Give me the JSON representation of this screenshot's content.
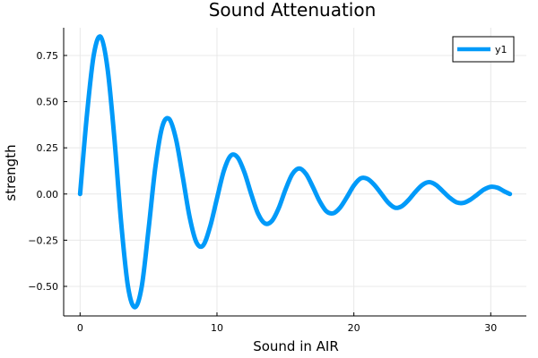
{
  "chart_data": {
    "type": "line",
    "title": "Sound Attenuation",
    "xlabel": "Sound in AIR",
    "ylabel": "strength",
    "xlim": [
      -1.2,
      32.6
    ],
    "ylim": [
      -0.66,
      0.9
    ],
    "xticks": [
      0,
      10,
      20,
      30
    ],
    "xtick_labels": [
      "0",
      "10",
      "20",
      "30"
    ],
    "yticks": [
      -0.5,
      -0.25,
      0,
      0.25,
      0.5,
      0.75
    ],
    "ytick_labels": [
      "−0.50",
      "−0.25",
      "0.00",
      "0.25",
      "0.50",
      "0.75"
    ],
    "grid": true,
    "legend": {
      "position": "top-right",
      "entries": [
        "y1"
      ]
    },
    "series": [
      {
        "name": "y1",
        "color": "#009af9",
        "x": [
          0,
          0.5,
          1.0,
          1.5,
          2.0,
          2.5,
          3.0,
          3.5,
          4.0,
          4.5,
          5.0,
          5.5,
          6.0,
          6.5,
          7.0,
          7.5,
          8.0,
          8.5,
          9.0,
          9.5,
          10.0,
          10.5,
          11.0,
          11.5,
          12.0,
          12.5,
          13.0,
          13.5,
          14.0,
          14.5,
          15.0,
          15.5,
          16.0,
          16.5,
          17.0,
          17.5,
          18.0,
          18.5,
          19.0,
          19.5,
          20.0,
          20.5,
          21.0,
          21.5,
          22.0,
          22.5,
          23.0,
          23.5,
          24.0,
          24.5,
          25.0,
          25.5,
          26.0,
          26.5,
          27.0,
          27.5,
          28.0,
          28.5,
          29.0,
          29.5,
          30.0,
          30.5,
          31.0,
          31.4
        ],
        "y": [
          0,
          0.428,
          0.753,
          0.851,
          0.682,
          0.306,
          -0.155,
          -0.501,
          -0.613,
          -0.502,
          -0.192,
          0.146,
          0.364,
          0.407,
          0.299,
          0.093,
          -0.124,
          -0.262,
          -0.277,
          -0.176,
          -0.024,
          0.125,
          0.207,
          0.199,
          0.118,
          0.0,
          -0.106,
          -0.159,
          -0.147,
          -0.078,
          0.023,
          0.107,
          0.138,
          0.109,
          0.039,
          -0.039,
          -0.094,
          -0.104,
          -0.073,
          -0.016,
          0.046,
          0.085,
          0.082,
          0.049,
          0.002,
          -0.046,
          -0.074,
          -0.066,
          -0.032,
          0.012,
          0.049,
          0.064,
          0.049,
          0.015,
          -0.02,
          -0.045,
          -0.048,
          -0.031,
          -0.004,
          0.024,
          0.039,
          0.034,
          0.014,
          0.0
        ]
      }
    ]
  }
}
